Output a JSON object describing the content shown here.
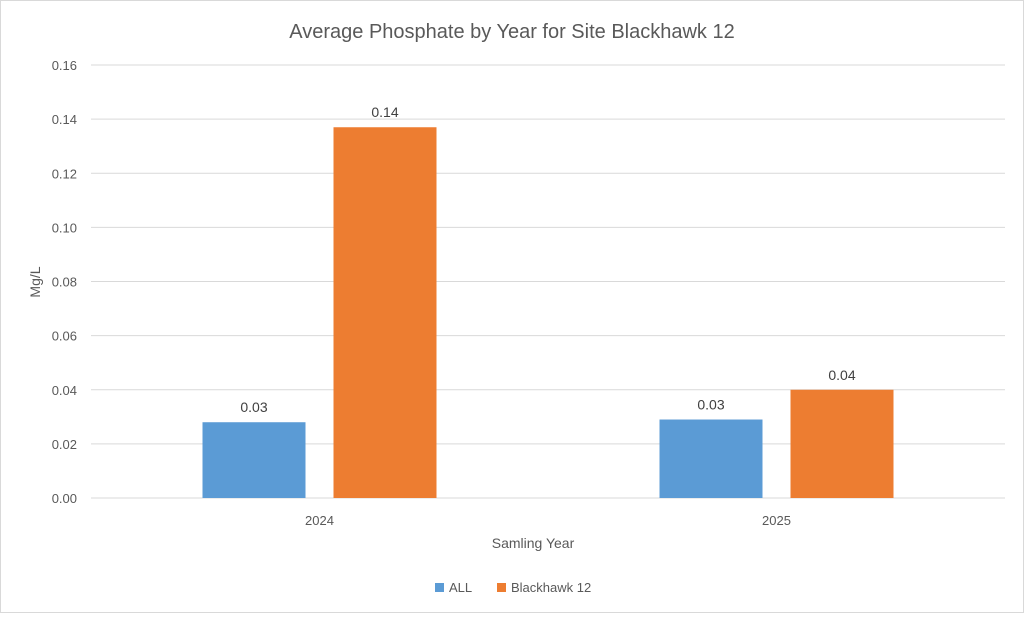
{
  "chart_data": {
    "type": "bar",
    "title": "Average Phosphate by Year for Site Blackhawk 12",
    "xlabel": "Samling Year",
    "ylabel": "Mg/L",
    "categories": [
      "2024",
      "2025"
    ],
    "series": [
      {
        "name": "ALL",
        "values": [
          0.028,
          0.029
        ],
        "labels": [
          "0.03",
          "0.03"
        ],
        "color": "#5B9BD5"
      },
      {
        "name": "Blackhawk 12",
        "values": [
          0.137,
          0.04
        ],
        "labels": [
          "0.14",
          "0.04"
        ],
        "color": "#ED7D31"
      }
    ],
    "ylim": [
      0,
      0.16
    ],
    "yticks": [
      "0.00",
      "0.02",
      "0.04",
      "0.06",
      "0.08",
      "0.10",
      "0.12",
      "0.14",
      "0.16"
    ],
    "grid": true,
    "legend_position": "bottom"
  }
}
